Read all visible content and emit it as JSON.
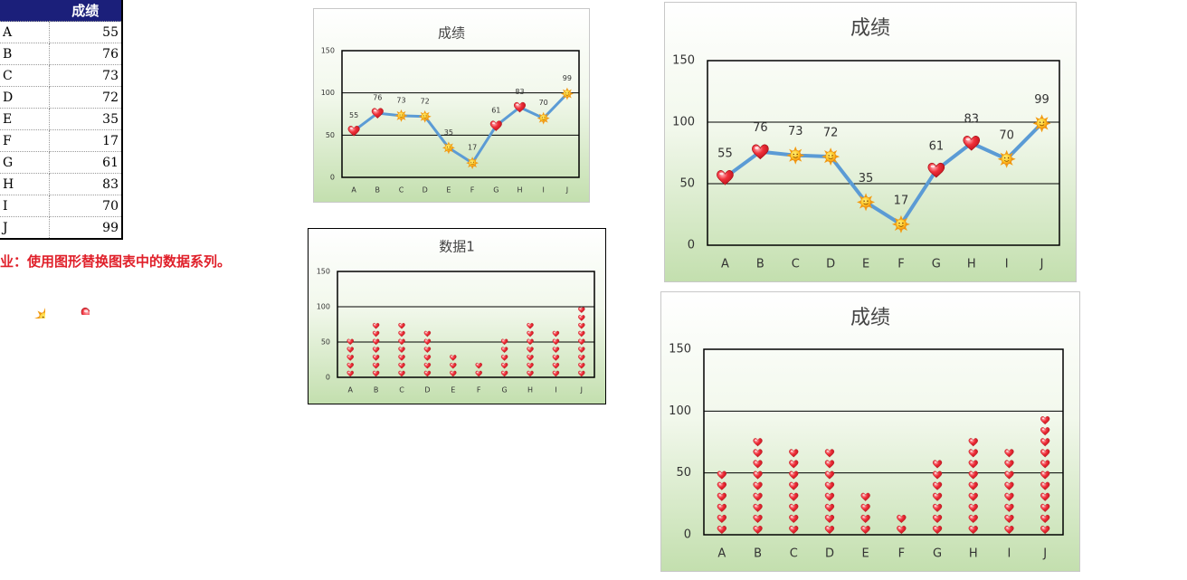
{
  "table": {
    "header": [
      "",
      "成绩"
    ],
    "rows": [
      [
        "A",
        "55"
      ],
      [
        "B",
        "76"
      ],
      [
        "C",
        "73"
      ],
      [
        "D",
        "72"
      ],
      [
        "E",
        "35"
      ],
      [
        "F",
        "17"
      ],
      [
        "G",
        "61"
      ],
      [
        "H",
        "83"
      ],
      [
        "I",
        "70"
      ],
      [
        "J",
        "99"
      ]
    ]
  },
  "note": "业：使用图形替换图表中的数据系列。",
  "legend_icons": [
    "sun-icon",
    "heart-icon"
  ],
  "colors": {
    "line": "#5b9bd5",
    "heart": "#e8202a",
    "sun": "#f7a21b",
    "bg_top": "#ffffff",
    "bg_bottom": "#c3dfae"
  },
  "chart_data": [
    {
      "type": "line",
      "title": "成绩",
      "categories": [
        "A",
        "B",
        "C",
        "D",
        "E",
        "F",
        "G",
        "H",
        "I",
        "J"
      ],
      "values": [
        55,
        76,
        73,
        72,
        35,
        17,
        61,
        83,
        70,
        99
      ],
      "ylim": [
        0,
        150
      ],
      "yticks": [
        "0",
        "50",
        "100",
        "150"
      ],
      "markers": [
        "heart",
        "heart",
        "sun",
        "sun",
        "sun",
        "sun",
        "heart",
        "heart",
        "sun",
        "sun"
      ]
    },
    {
      "type": "bar",
      "title": "数据1",
      "categories": [
        "A",
        "B",
        "C",
        "D",
        "E",
        "F",
        "G",
        "H",
        "I",
        "J"
      ],
      "values": [
        55,
        76,
        73,
        72,
        35,
        17,
        61,
        83,
        70,
        99
      ],
      "ylim": [
        0,
        150
      ],
      "yticks": [
        "0",
        "50",
        "100",
        "150"
      ]
    },
    {
      "type": "line",
      "title": "成绩",
      "categories": [
        "A",
        "B",
        "C",
        "D",
        "E",
        "F",
        "G",
        "H",
        "I",
        "J"
      ],
      "values": [
        55,
        76,
        73,
        72,
        35,
        17,
        61,
        83,
        70,
        99
      ],
      "ylim": [
        0,
        150
      ],
      "yticks": [
        "0",
        "50",
        "100",
        "150"
      ],
      "markers": [
        "heart",
        "heart",
        "sun",
        "sun",
        "sun",
        "sun",
        "heart",
        "heart",
        "sun",
        "sun"
      ]
    },
    {
      "type": "bar",
      "title": "成绩",
      "categories": [
        "A",
        "B",
        "C",
        "D",
        "E",
        "F",
        "G",
        "H",
        "I",
        "J"
      ],
      "values": [
        55,
        76,
        73,
        72,
        35,
        17,
        61,
        83,
        70,
        99
      ],
      "ylim": [
        0,
        150
      ],
      "yticks": [
        "0",
        "50",
        "100",
        "150"
      ]
    }
  ]
}
